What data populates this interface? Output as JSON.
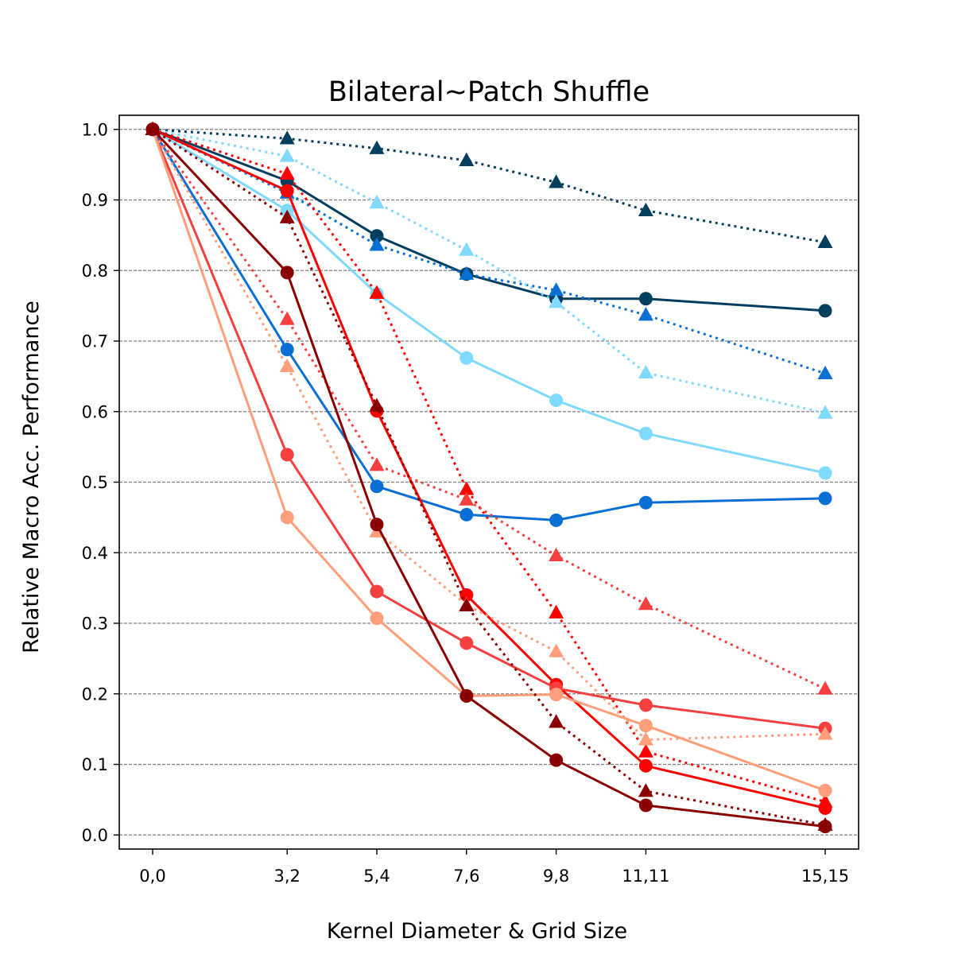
{
  "chart_data": {
    "type": "line",
    "title": "Bilateral~Patch Shuffle",
    "xlabel": "Kernel Diameter & Grid Size",
    "ylabel": "Relative Macro Acc. Performance",
    "x_categories": [
      "0,0",
      "3,2",
      "5,4",
      "7,6",
      "9,8",
      "11,11",
      "15,15"
    ],
    "x_positions": [
      0,
      3,
      5,
      7,
      9,
      11,
      15
    ],
    "ylim": [
      -0.02,
      1.02
    ],
    "yticks": [
      "0.0",
      "0.1",
      "0.2",
      "0.3",
      "0.4",
      "0.5",
      "0.6",
      "0.7",
      "0.8",
      "0.9",
      "1.0"
    ],
    "grid": "horizontal dashed",
    "legend": "none",
    "series": [
      {
        "color": "#023e5e",
        "style": "solid",
        "marker": "circle",
        "values": [
          1.0,
          0.927,
          0.849,
          0.795,
          0.76,
          0.76,
          0.743
        ]
      },
      {
        "color": "#023e5e",
        "style": "dotted",
        "marker": "triangle",
        "values": [
          1.0,
          0.987,
          0.973,
          0.956,
          0.925,
          0.885,
          0.84
        ]
      },
      {
        "color": "#0a6fd4",
        "style": "solid",
        "marker": "circle",
        "values": [
          1.0,
          0.688,
          0.494,
          0.454,
          0.446,
          0.471,
          0.477
        ]
      },
      {
        "color": "#0a6fd4",
        "style": "dotted",
        "marker": "triangle",
        "values": [
          1.0,
          0.91,
          0.836,
          0.795,
          0.772,
          0.737,
          0.654
        ]
      },
      {
        "color": "#80d9ff",
        "style": "solid",
        "marker": "circle",
        "values": [
          1.0,
          0.885,
          0.767,
          0.676,
          0.616,
          0.569,
          0.513
        ]
      },
      {
        "color": "#80d9ff",
        "style": "dotted",
        "marker": "triangle",
        "values": [
          1.0,
          0.962,
          0.896,
          0.829,
          0.755,
          0.655,
          0.598
        ]
      },
      {
        "color": "#ff0000",
        "style": "solid",
        "marker": "circle",
        "values": [
          1.0,
          0.913,
          0.601,
          0.34,
          0.213,
          0.098,
          0.038
        ]
      },
      {
        "color": "#ff0000",
        "style": "dotted",
        "marker": "triangle",
        "values": [
          1.0,
          0.937,
          0.768,
          0.49,
          0.315,
          0.118,
          0.047
        ]
      },
      {
        "color": "#f64040",
        "style": "solid",
        "marker": "circle",
        "values": [
          1.0,
          0.539,
          0.345,
          0.272,
          0.208,
          0.184,
          0.151
        ]
      },
      {
        "color": "#f64040",
        "style": "dotted",
        "marker": "triangle",
        "values": [
          1.0,
          0.731,
          0.524,
          0.475,
          0.396,
          0.327,
          0.207
        ]
      },
      {
        "color": "#ff9e7a",
        "style": "solid",
        "marker": "circle",
        "values": [
          1.0,
          0.45,
          0.307,
          0.197,
          0.199,
          0.155,
          0.063
        ]
      },
      {
        "color": "#ff9e7a",
        "style": "dotted",
        "marker": "triangle",
        "values": [
          1.0,
          0.664,
          0.43,
          0.326,
          0.26,
          0.135,
          0.143
        ]
      },
      {
        "color": "#8a0000",
        "style": "solid",
        "marker": "circle",
        "values": [
          1.0,
          0.797,
          0.44,
          0.197,
          0.106,
          0.042,
          0.012
        ]
      },
      {
        "color": "#8a0000",
        "style": "dotted",
        "marker": "triangle",
        "values": [
          1.0,
          0.875,
          0.608,
          0.325,
          0.16,
          0.062,
          0.014
        ]
      }
    ]
  }
}
